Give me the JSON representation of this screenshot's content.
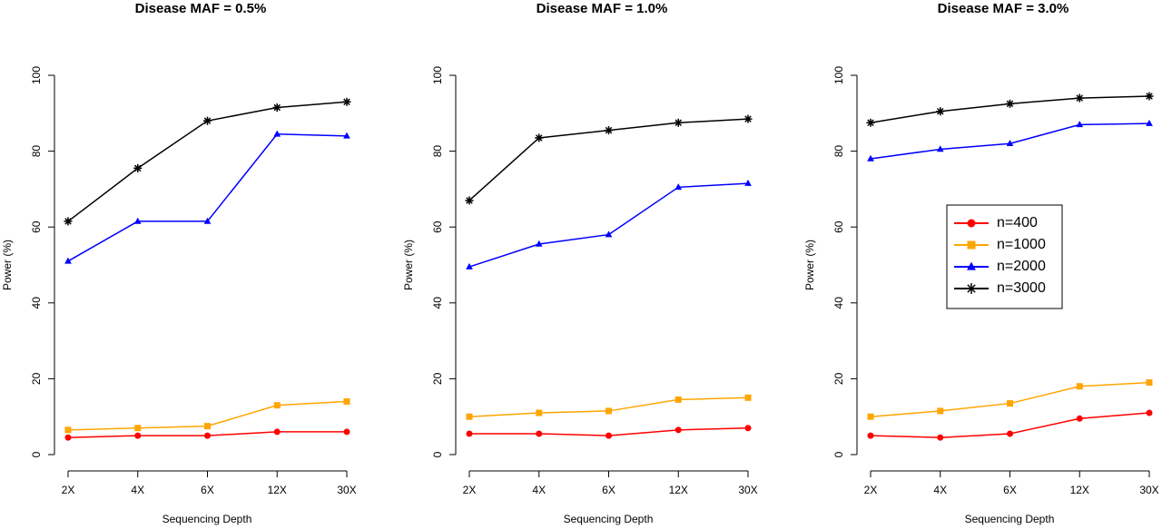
{
  "chart_data": [
    {
      "type": "line",
      "title": "Disease MAF = 0.5%",
      "x_label": "Sequencing Depth",
      "y_label": "Power (%)",
      "categories": [
        "2X",
        "4X",
        "6X",
        "12X",
        "30X"
      ],
      "ylim": [
        0,
        100
      ],
      "yticks": [
        0,
        20,
        40,
        60,
        80,
        100
      ],
      "series": [
        {
          "color": "#ff0000",
          "marker": "circle",
          "values": [
            4.5,
            5,
            5,
            6,
            6
          ]
        },
        {
          "color": "#ffa500",
          "marker": "square",
          "values": [
            6.5,
            7,
            7.5,
            13,
            14
          ]
        },
        {
          "color": "#0000ff",
          "marker": "triangle",
          "values": [
            51,
            61.5,
            61.5,
            84.5,
            84
          ]
        },
        {
          "color": "#000000",
          "marker": "asterisk",
          "values": [
            61.5,
            75.5,
            88,
            91.5,
            93
          ]
        }
      ]
    },
    {
      "type": "line",
      "title": "Disease MAF = 1.0%",
      "x_label": "Sequencing Depth",
      "y_label": "Power (%)",
      "categories": [
        "2X",
        "4X",
        "6X",
        "12X",
        "30X"
      ],
      "ylim": [
        0,
        100
      ],
      "yticks": [
        0,
        20,
        40,
        60,
        80,
        100
      ],
      "series": [
        {
          "color": "#ff0000",
          "marker": "circle",
          "values": [
            5.5,
            5.5,
            5,
            6.5,
            7
          ]
        },
        {
          "color": "#ffa500",
          "marker": "square",
          "values": [
            10,
            11,
            11.5,
            14.5,
            15
          ]
        },
        {
          "color": "#0000ff",
          "marker": "triangle",
          "values": [
            49.5,
            55.5,
            58,
            70.5,
            71.5
          ]
        },
        {
          "color": "#000000",
          "marker": "asterisk",
          "values": [
            67,
            83.5,
            85.5,
            87.5,
            88.5
          ]
        }
      ]
    },
    {
      "type": "line",
      "title": "Disease MAF = 3.0%",
      "x_label": "Sequencing Depth",
      "y_label": "Power (%)",
      "categories": [
        "2X",
        "4X",
        "6X",
        "12X",
        "30X"
      ],
      "ylim": [
        0,
        100
      ],
      "yticks": [
        0,
        20,
        40,
        60,
        80,
        100
      ],
      "legend": "center-right",
      "series": [
        {
          "name": "n=400",
          "color": "#ff0000",
          "marker": "circle",
          "values": [
            5,
            4.5,
            5.5,
            9.5,
            11
          ]
        },
        {
          "name": "n=1000",
          "color": "#ffa500",
          "marker": "square",
          "values": [
            10,
            11.5,
            13.5,
            18,
            19
          ]
        },
        {
          "name": "n=2000",
          "color": "#0000ff",
          "marker": "triangle",
          "values": [
            78,
            80.5,
            82,
            87,
            87.3
          ]
        },
        {
          "name": "n=3000",
          "color": "#000000",
          "marker": "asterisk",
          "values": [
            87.5,
            90.5,
            92.5,
            94,
            94.5
          ]
        }
      ]
    }
  ]
}
